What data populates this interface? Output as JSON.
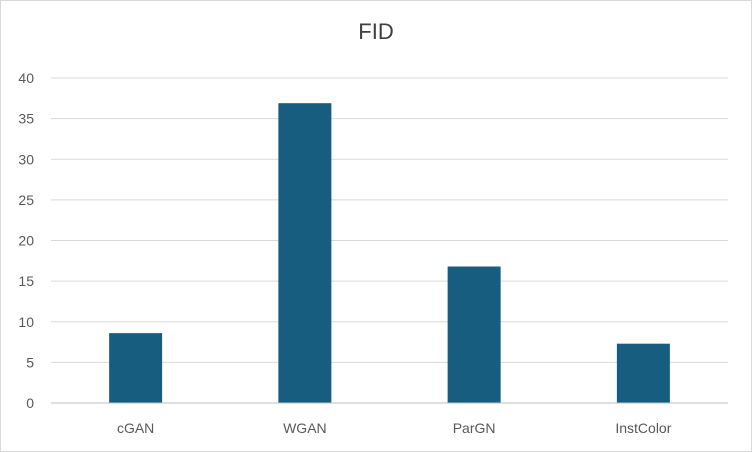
{
  "chart_data": {
    "type": "bar",
    "title": "FID",
    "categories": [
      "cGAN",
      "WGAN",
      "ParGN",
      "InstColor"
    ],
    "values": [
      8.6,
      36.9,
      16.8,
      7.3
    ],
    "ylim": [
      0,
      40
    ],
    "yticks": [
      0,
      5,
      10,
      15,
      20,
      25,
      30,
      35,
      40
    ],
    "grid": true,
    "legend": "none",
    "bar_color": "#175d80",
    "grid_color": "#d9d9d9",
    "axis_color": "#bfbfbf"
  }
}
